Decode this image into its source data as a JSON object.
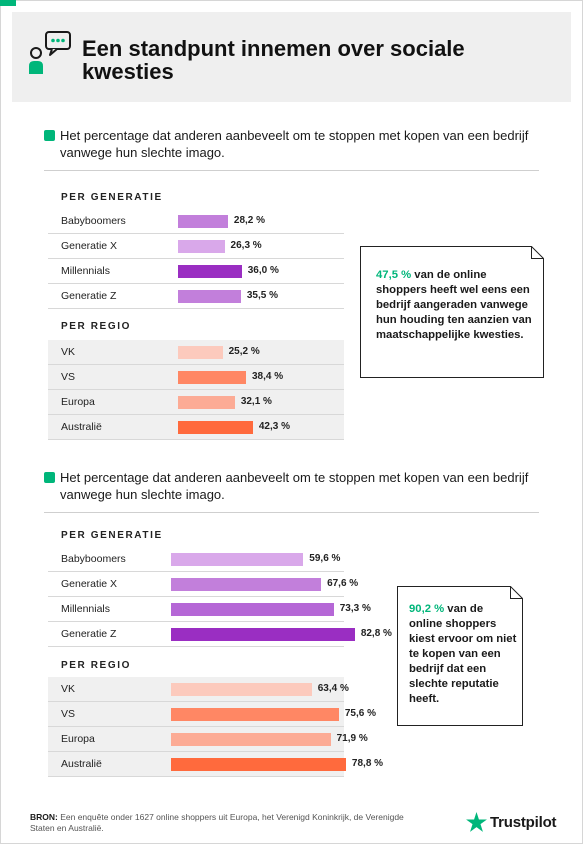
{
  "header": {
    "title": "Een standpunt innemen over sociale kwesties"
  },
  "sections": [
    {
      "question": "Het percentage dat anderen aanbeveelt om te stoppen met kopen van een bedrijf vanwege hun slechte imago.",
      "generation_title": "PER GENERATIE",
      "region_title": "PER REGIO",
      "callout": {
        "highlight": "47,5 %",
        "text": " van de online shoppers heeft wel eens een bedrijf aangeraden vanwege hun houding ten aanzien van maatschappelijke kwesties."
      }
    },
    {
      "question": "Het percentage dat anderen aanbeveelt om te stoppen met kopen van een bedrijf vanwege hun slechte imago.",
      "generation_title": "PER GENERATIE",
      "region_title": "PER REGIO",
      "callout": {
        "highlight": "90,2 %",
        "text": " van de online shoppers kiest ervoor om niet te kopen van een bedrijf dat een slechte reputatie heeft."
      }
    }
  ],
  "chart_data": [
    {
      "type": "bar",
      "group": "PER GENERATIE",
      "categories": [
        "Babyboomers",
        "Generatie X",
        "Millennials",
        "Generatie Z"
      ],
      "values": [
        28.2,
        26.3,
        36.0,
        35.5
      ],
      "labels": [
        "28,2 %",
        "26,3 %",
        "36,0 %",
        "35,5 %"
      ],
      "colors": [
        "#c27fdb",
        "#d9a8ea",
        "#9a2ec2",
        "#c27fdb"
      ]
    },
    {
      "type": "bar",
      "group": "PER REGIO",
      "categories": [
        "VK",
        "VS",
        "Europa",
        "Australië"
      ],
      "values": [
        25.2,
        38.4,
        32.1,
        42.3
      ],
      "labels": [
        "25,2 %",
        "38,4 %",
        "32,1 %",
        "42,3 %"
      ],
      "colors": [
        "#fccabd",
        "#ff8764",
        "#fcab95",
        "#ff6a3d"
      ]
    },
    {
      "type": "bar",
      "group": "PER GENERATIE",
      "categories": [
        "Babyboomers",
        "Generatie X",
        "Millennials",
        "Generatie Z"
      ],
      "values": [
        59.6,
        67.6,
        73.3,
        82.8
      ],
      "labels": [
        "59,6 %",
        "67,6 %",
        "73,3 %",
        "82,8 %"
      ],
      "colors": [
        "#d9a8ea",
        "#c27fdb",
        "#b567d6",
        "#9a2ec2"
      ]
    },
    {
      "type": "bar",
      "group": "PER REGIO",
      "categories": [
        "VK",
        "VS",
        "Europa",
        "Australië"
      ],
      "values": [
        63.4,
        75.6,
        71.9,
        78.8
      ],
      "labels": [
        "63,4 %",
        "75,6 %",
        "71,9 %",
        "78,8 %"
      ],
      "colors": [
        "#fccabd",
        "#ff8764",
        "#fcab95",
        "#ff6a3d"
      ]
    }
  ],
  "footer": {
    "source_label": "BRON:",
    "source_text": " Een enquête onder 1627 online shoppers uit Europa, het Verenigd Koninkrijk, de Verenigde Staten en Australië.",
    "brand": "Trustpilot",
    "brand_color": "#00b67a"
  }
}
